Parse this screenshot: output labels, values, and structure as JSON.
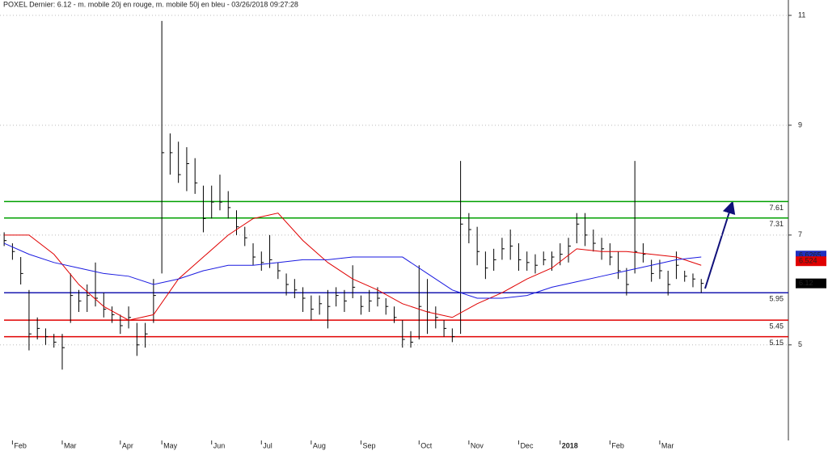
{
  "chart_data": {
    "type": "ohlc",
    "title": "POXEL Dernier: 6.12 - m. mobile 20j en rouge, m. mobile 50j en bleu - 03/26/2018 09:27:28",
    "bar_color": "#000000",
    "high": [
      7.05,
      6.85,
      6.6,
      6.0,
      5.5,
      5.3,
      5.2,
      5.2,
      6.3,
      6.0,
      6.1,
      6.5,
      5.95,
      5.7,
      5.55,
      5.7,
      5.4,
      5.4,
      6.2,
      10.9,
      8.85,
      8.7,
      8.6,
      8.4,
      7.9,
      7.9,
      8.1,
      7.8,
      7.45,
      7.15,
      6.85,
      6.7,
      7.0,
      6.5,
      6.3,
      6.2,
      6.05,
      5.9,
      5.9,
      6.0,
      6.05,
      6.0,
      6.45,
      5.9,
      6.0,
      6.05,
      5.85,
      5.7,
      5.45,
      5.25,
      6.45,
      6.2,
      5.7,
      5.45,
      5.3,
      8.35,
      7.4,
      7.15,
      6.7,
      6.75,
      6.95,
      7.1,
      6.85,
      6.7,
      6.65,
      6.7,
      6.7,
      6.85,
      6.95,
      7.4,
      7.4,
      7.1,
      6.95,
      6.85,
      6.7,
      6.4,
      8.35,
      6.85,
      6.55,
      6.55,
      6.35,
      6.7,
      6.35,
      6.3,
      6.2
    ],
    "low": [
      6.8,
      6.55,
      6.1,
      4.9,
      5.1,
      5.0,
      4.95,
      4.55,
      5.4,
      5.6,
      5.6,
      5.7,
      5.5,
      5.4,
      5.2,
      5.3,
      4.8,
      4.95,
      5.4,
      6.3,
      8.1,
      7.95,
      7.8,
      7.75,
      7.05,
      7.3,
      7.45,
      7.3,
      7.0,
      6.8,
      6.45,
      6.35,
      6.4,
      6.2,
      5.9,
      5.85,
      5.6,
      5.45,
      5.55,
      5.3,
      5.7,
      5.6,
      5.85,
      5.55,
      5.6,
      5.7,
      5.55,
      5.4,
      4.95,
      4.95,
      5.1,
      5.2,
      5.3,
      5.15,
      5.05,
      5.2,
      6.85,
      6.45,
      6.2,
      6.35,
      6.55,
      6.55,
      6.35,
      6.35,
      6.3,
      6.45,
      6.35,
      6.45,
      6.5,
      6.85,
      6.8,
      6.7,
      6.55,
      6.45,
      6.2,
      5.9,
      6.3,
      6.5,
      6.15,
      6.2,
      5.9,
      6.2,
      6.15,
      6.05,
      5.95
    ],
    "close": [
      6.9,
      6.7,
      6.3,
      5.2,
      5.3,
      5.15,
      5.05,
      4.95,
      5.9,
      5.8,
      5.9,
      5.85,
      5.65,
      5.55,
      5.35,
      5.5,
      5.0,
      5.2,
      5.9,
      8.5,
      8.5,
      8.1,
      8.3,
      7.95,
      7.3,
      7.6,
      7.6,
      7.5,
      7.15,
      6.95,
      6.6,
      6.5,
      6.55,
      6.35,
      6.1,
      6.0,
      5.85,
      5.65,
      5.75,
      5.7,
      5.9,
      5.8,
      6.05,
      5.7,
      5.8,
      5.85,
      5.7,
      5.5,
      5.1,
      5.05,
      5.7,
      5.6,
      5.5,
      5.3,
      5.15,
      7.2,
      7.1,
      6.7,
      6.4,
      6.55,
      6.75,
      6.8,
      6.55,
      6.5,
      6.45,
      6.55,
      6.6,
      6.65,
      6.8,
      7.2,
      7.0,
      6.85,
      6.75,
      6.6,
      6.35,
      6.1,
      6.7,
      6.65,
      6.3,
      6.35,
      6.1,
      6.45,
      6.25,
      6.2,
      6.12
    ],
    "moving_averages": [
      {
        "color": "#e00000",
        "x": [
          0,
          3,
          6,
          9,
          12,
          15,
          18,
          21,
          24,
          27,
          30,
          33,
          36,
          39,
          42,
          45,
          48,
          51,
          54,
          57,
          60,
          63,
          66,
          69,
          72,
          75,
          78,
          81,
          84
        ],
        "values": [
          7.0,
          7.0,
          6.65,
          6.1,
          5.7,
          5.45,
          5.55,
          6.2,
          6.6,
          7.0,
          7.3,
          7.4,
          6.9,
          6.5,
          6.2,
          6.0,
          5.75,
          5.6,
          5.5,
          5.75,
          5.95,
          6.2,
          6.4,
          6.75,
          6.7,
          6.7,
          6.65,
          6.6,
          6.45
        ]
      },
      {
        "color": "#1a1ae0",
        "x": [
          0,
          3,
          6,
          9,
          12,
          15,
          18,
          21,
          24,
          27,
          30,
          33,
          36,
          39,
          42,
          45,
          48,
          51,
          54,
          57,
          60,
          63,
          66,
          69,
          72,
          75,
          78,
          81,
          84
        ],
        "values": [
          6.85,
          6.65,
          6.5,
          6.4,
          6.3,
          6.25,
          6.1,
          6.2,
          6.35,
          6.45,
          6.45,
          6.5,
          6.55,
          6.55,
          6.6,
          6.6,
          6.6,
          6.3,
          6.0,
          5.85,
          5.85,
          5.9,
          6.05,
          6.15,
          6.25,
          6.35,
          6.45,
          6.55,
          6.6
        ]
      }
    ],
    "levels": [
      {
        "value": 7.61,
        "color": "#00a000"
      },
      {
        "value": 7.31,
        "color": "#00a000"
      },
      {
        "value": 5.95,
        "color": "#1a1ab0"
      },
      {
        "value": 5.45,
        "color": "#e00000"
      },
      {
        "value": 5.15,
        "color": "#e00000"
      }
    ],
    "price_tags": [
      {
        "value": 6.6265,
        "color": "#2030c0"
      },
      {
        "value": 6.524,
        "color": "#e00000"
      },
      {
        "value": 6.12,
        "color": "#000000"
      }
    ],
    "xlim": [
      -0.5,
      94.5
    ],
    "xticks": [
      {
        "value": 1,
        "label": "Feb"
      },
      {
        "value": 7,
        "label": "Mar"
      },
      {
        "value": 14,
        "label": "Apr"
      },
      {
        "value": 19,
        "label": "May"
      },
      {
        "value": 25,
        "label": "Jun"
      },
      {
        "value": 31,
        "label": "Jul"
      },
      {
        "value": 37,
        "label": "Aug"
      },
      {
        "value": 43,
        "label": "Sep"
      },
      {
        "value": 50,
        "label": "Oct"
      },
      {
        "value": 56,
        "label": "Nov"
      },
      {
        "value": 62,
        "label": "Dec"
      },
      {
        "value": 67,
        "label": "2018"
      },
      {
        "value": 73,
        "label": "Feb"
      },
      {
        "value": 79,
        "label": "Mar"
      }
    ],
    "ylim": [
      3.26,
      11.28
    ],
    "yticks": [
      5,
      7,
      9,
      11
    ],
    "grid": true
  }
}
